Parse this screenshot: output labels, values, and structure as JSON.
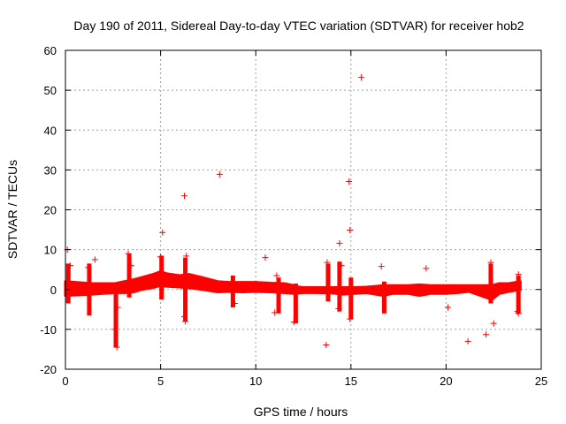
{
  "chart_data": {
    "type": "scatter",
    "title": "Day 190 of 2011, Sidereal Day-to-day VTEC variation (SDTVAR) for receiver hob2",
    "xlabel": "GPS time / hours",
    "ylabel": "SDTVAR / TECUs",
    "xlim": [
      0,
      25
    ],
    "ylim": [
      -20,
      60
    ],
    "xticks": [
      0,
      5,
      10,
      15,
      20,
      25
    ],
    "yticks": [
      -20,
      -10,
      0,
      10,
      20,
      30,
      40,
      50,
      60
    ],
    "xtick_labels": [
      "0",
      "5",
      "10",
      "15",
      "20",
      "25"
    ],
    "ytick_labels": [
      "-20",
      "-10",
      "0",
      "10",
      "20",
      "30",
      "40",
      "50",
      "60"
    ],
    "grid": true,
    "marker": "+",
    "color": "#ff0000",
    "bands": [
      {
        "name": "dense-band-1",
        "x": [
          0.0,
          1.4,
          2.0,
          2.6,
          3.1,
          3.6,
          4.0,
          4.6,
          5.0,
          5.3,
          6.0,
          6.5,
          7.2,
          8.0,
          8.6,
          9.3,
          10.0,
          10.8,
          11.5,
          12.0
        ],
        "y_low": [
          -1.5,
          -1.2,
          -1.0,
          -0.8,
          -0.8,
          -0.6,
          0.0,
          0.5,
          1.0,
          0.8,
          0.6,
          0.4,
          0.0,
          -0.6,
          -0.5,
          -0.6,
          -0.5,
          -0.6,
          -0.8,
          -1.0
        ],
        "y_high": [
          2.0,
          1.5,
          1.5,
          1.5,
          2.0,
          2.5,
          3.0,
          3.8,
          4.5,
          4.0,
          3.5,
          3.8,
          3.0,
          2.0,
          1.8,
          1.8,
          1.8,
          1.6,
          1.5,
          1.0
        ]
      },
      {
        "name": "dense-band-2",
        "x": [
          12.0,
          12.5,
          13.2,
          14.0,
          14.6,
          15.2,
          15.8,
          16.3,
          16.7,
          17.2,
          18.0,
          18.6,
          19.2,
          20.0,
          20.6,
          21.2,
          21.8,
          22.4,
          22.8,
          23.3,
          23.9
        ],
        "y_low": [
          -1.0,
          -0.8,
          -0.8,
          -0.9,
          -1.2,
          -1.0,
          -0.8,
          -1.2,
          -1.5,
          -1.0,
          -1.0,
          -1.5,
          -1.0,
          -1.0,
          -0.8,
          -0.5,
          -1.5,
          -2.5,
          -1.0,
          -0.5,
          0.0
        ],
        "y_high": [
          0.8,
          0.5,
          0.5,
          0.5,
          0.5,
          0.5,
          0.6,
          0.8,
          1.0,
          1.0,
          1.0,
          1.2,
          1.0,
          1.0,
          1.0,
          1.0,
          1.0,
          1.0,
          1.5,
          1.5,
          2.0
        ]
      }
    ],
    "spikes": [
      {
        "x": 0.15,
        "y_low": -3.5,
        "y_high": 6.5
      },
      {
        "x": 1.25,
        "y_low": -6.5,
        "y_high": 6.5
      },
      {
        "x": 2.65,
        "y_low": -14.5,
        "y_high": 1.5
      },
      {
        "x": 3.35,
        "y_low": -2.0,
        "y_high": 9.0
      },
      {
        "x": 5.05,
        "y_low": -2.5,
        "y_high": 8.5
      },
      {
        "x": 6.3,
        "y_low": -8.0,
        "y_high": 8.0
      },
      {
        "x": 8.8,
        "y_low": -4.5,
        "y_high": 3.5
      },
      {
        "x": 11.2,
        "y_low": -6.0,
        "y_high": 3.0
      },
      {
        "x": 12.1,
        "y_low": -8.5,
        "y_high": 1.5
      },
      {
        "x": 13.8,
        "y_low": -3.0,
        "y_high": 6.5
      },
      {
        "x": 14.4,
        "y_low": -5.5,
        "y_high": 7.0
      },
      {
        "x": 15.0,
        "y_low": -7.5,
        "y_high": 3.0
      },
      {
        "x": 16.75,
        "y_low": -6.0,
        "y_high": 2.0
      },
      {
        "x": 22.35,
        "y_low": -3.5,
        "y_high": 6.5
      },
      {
        "x": 23.8,
        "y_low": -6.0,
        "y_high": 3.5
      }
    ],
    "outliers": [
      {
        "x": 0.1,
        "y": 10.0
      },
      {
        "x": 0.25,
        "y": 6.0
      },
      {
        "x": 1.2,
        "y": 5.5
      },
      {
        "x": 1.55,
        "y": 7.5
      },
      {
        "x": 2.6,
        "y": -10.0
      },
      {
        "x": 2.7,
        "y": -14.5
      },
      {
        "x": 2.75,
        "y": -4.5
      },
      {
        "x": 3.3,
        "y": 9.0
      },
      {
        "x": 3.45,
        "y": 6.0
      },
      {
        "x": 5.1,
        "y": 14.3
      },
      {
        "x": 5.0,
        "y": 8.2
      },
      {
        "x": 6.25,
        "y": 23.5
      },
      {
        "x": 6.35,
        "y": 8.4
      },
      {
        "x": 6.25,
        "y": -6.8
      },
      {
        "x": 6.3,
        "y": -8.0
      },
      {
        "x": 8.1,
        "y": 28.9
      },
      {
        "x": 8.9,
        "y": -3.5
      },
      {
        "x": 10.5,
        "y": 8.0
      },
      {
        "x": 11.0,
        "y": -5.8
      },
      {
        "x": 11.1,
        "y": 3.5
      },
      {
        "x": 12.0,
        "y": -8.2
      },
      {
        "x": 13.7,
        "y": -13.9
      },
      {
        "x": 13.75,
        "y": 6.8
      },
      {
        "x": 14.4,
        "y": 11.6
      },
      {
        "x": 14.5,
        "y": 6.0
      },
      {
        "x": 14.35,
        "y": -4.8
      },
      {
        "x": 14.9,
        "y": 27.1
      },
      {
        "x": 14.95,
        "y": 14.9
      },
      {
        "x": 14.95,
        "y": -7.4
      },
      {
        "x": 15.55,
        "y": 53.2
      },
      {
        "x": 16.6,
        "y": 5.8
      },
      {
        "x": 18.95,
        "y": 5.3
      },
      {
        "x": 20.1,
        "y": -4.5
      },
      {
        "x": 21.15,
        "y": -13.0
      },
      {
        "x": 22.1,
        "y": -11.3
      },
      {
        "x": 22.35,
        "y": 6.8
      },
      {
        "x": 22.5,
        "y": -8.5
      },
      {
        "x": 23.8,
        "y": 3.8
      },
      {
        "x": 23.75,
        "y": -5.5
      },
      {
        "x": 23.8,
        "y": -6.0
      }
    ]
  }
}
